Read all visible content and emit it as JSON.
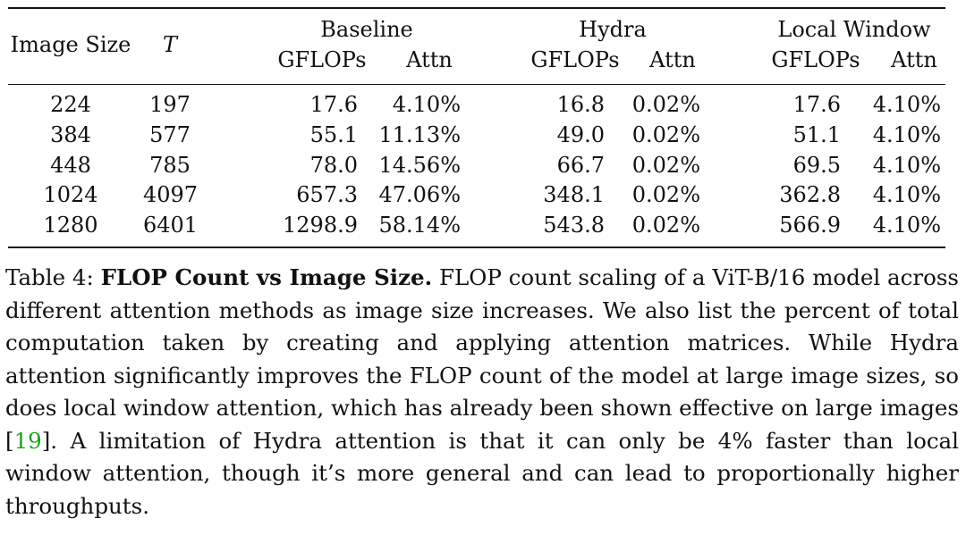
{
  "table": {
    "headers": {
      "image_size": "Image Size",
      "t": "T",
      "groups": [
        "Baseline",
        "Hydra",
        "Local Window"
      ],
      "sub": [
        "GFLOPs",
        "Attn",
        "GFLOPs",
        "Attn",
        "GFLOPs",
        "Attn"
      ]
    },
    "rows": [
      {
        "size": "224",
        "t": "197",
        "b_gflops": "17.6",
        "b_attn": "4.10%",
        "h_gflops": "16.8",
        "h_attn": "0.02%",
        "l_gflops": "17.6",
        "l_attn": "4.10%"
      },
      {
        "size": "384",
        "t": "577",
        "b_gflops": "55.1",
        "b_attn": "11.13%",
        "h_gflops": "49.0",
        "h_attn": "0.02%",
        "l_gflops": "51.1",
        "l_attn": "4.10%"
      },
      {
        "size": "448",
        "t": "785",
        "b_gflops": "78.0",
        "b_attn": "14.56%",
        "h_gflops": "66.7",
        "h_attn": "0.02%",
        "l_gflops": "69.5",
        "l_attn": "4.10%"
      },
      {
        "size": "1024",
        "t": "4097",
        "b_gflops": "657.3",
        "b_attn": "47.06%",
        "h_gflops": "348.1",
        "h_attn": "0.02%",
        "l_gflops": "362.8",
        "l_attn": "4.10%"
      },
      {
        "size": "1280",
        "t": "6401",
        "b_gflops": "1298.9",
        "b_attn": "58.14%",
        "h_gflops": "543.8",
        "h_attn": "0.02%",
        "l_gflops": "566.9",
        "l_attn": "4.10%"
      }
    ]
  },
  "caption": {
    "label": "Table 4:",
    "title": "FLOP Count vs Image Size.",
    "text_before_cite": "FLOP count scaling of a ViT-B/16 model across different attention methods as image size increases. We also list the percent of total computation taken by creating and applying attention matrices. While Hydra attention significantly improves the FLOP count of the model at large image sizes, so does local window attention, which has already been shown effective on large images [",
    "cite": "19",
    "text_after_cite": "]. A limitation of Hydra attention is that it can only be 4% faster than local window attention, though it’s more general and can lead to proportionally higher throughputs."
  }
}
